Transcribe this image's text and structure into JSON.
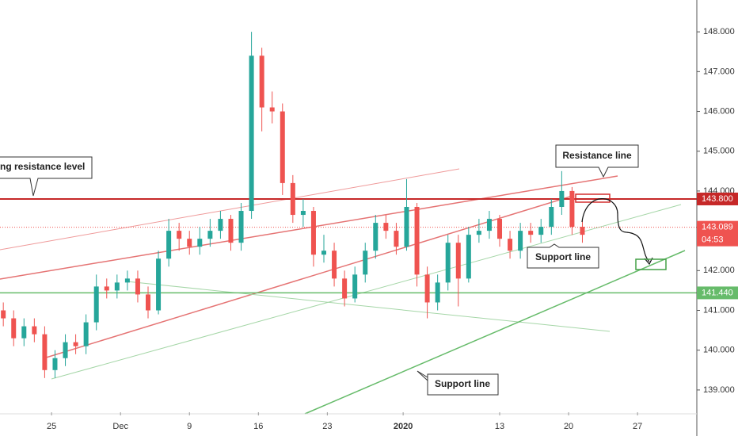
{
  "chart_data": {
    "type": "candlestick",
    "x": [
      -3.5,
      -2.75,
      -2,
      -1.25,
      -0.5,
      0.25,
      1,
      1.75,
      2.5,
      3.25,
      4,
      4.75,
      5.5,
      6.25,
      7,
      7.75,
      8.5,
      9.25,
      10,
      10.75,
      11.5,
      12.25,
      13,
      13.75,
      14.5,
      15.25,
      16,
      16.75,
      17.5,
      18.25,
      19,
      19.75,
      20.5,
      21.25,
      22,
      22.75,
      23.5,
      24.25,
      25,
      25.75,
      26.5,
      27.25,
      28,
      28.75,
      29.5,
      30.25,
      31,
      31.75,
      32.5,
      33.25,
      34,
      34.75,
      35.5,
      36.25,
      37,
      37.75,
      38.5
    ],
    "open": [
      141.0,
      140.8,
      140.3,
      140.6,
      140.4,
      139.5,
      139.8,
      140.2,
      140.1,
      140.7,
      141.6,
      141.5,
      141.7,
      141.8,
      141.4,
      141.0,
      142.3,
      143.0,
      142.8,
      142.6,
      142.8,
      143.0,
      143.3,
      142.7,
      143.5,
      147.4,
      146.1,
      146.0,
      144.2,
      143.4,
      143.5,
      142.4,
      142.5,
      141.8,
      141.3,
      141.9,
      142.5,
      143.2,
      143.0,
      142.6,
      143.6,
      141.9,
      141.2,
      141.7,
      142.7,
      141.8,
      142.9,
      143.0,
      143.3,
      142.8,
      142.5,
      143.0,
      142.9,
      143.1,
      143.6,
      144.0,
      143.1
    ],
    "high": [
      141.2,
      141.0,
      140.8,
      140.8,
      140.6,
      140.0,
      140.4,
      140.4,
      140.9,
      141.9,
      141.8,
      141.9,
      142.0,
      142.0,
      141.6,
      142.5,
      143.3,
      143.2,
      143.0,
      143.1,
      143.3,
      143.5,
      143.4,
      143.7,
      148.0,
      147.6,
      146.5,
      146.2,
      144.4,
      143.8,
      143.6,
      142.9,
      142.7,
      142.0,
      142.1,
      142.7,
      143.4,
      143.4,
      143.2,
      144.3,
      143.7,
      142.1,
      141.9,
      142.9,
      142.9,
      143.1,
      143.3,
      143.5,
      143.4,
      143.0,
      143.2,
      143.2,
      143.3,
      143.8,
      144.5,
      144.1,
      143.3
    ],
    "low": [
      140.6,
      140.1,
      140.1,
      140.2,
      139.3,
      139.3,
      139.6,
      139.9,
      139.9,
      140.5,
      141.3,
      141.3,
      141.5,
      141.2,
      140.8,
      140.9,
      142.1,
      142.5,
      142.4,
      142.4,
      142.6,
      142.8,
      142.5,
      142.5,
      143.3,
      145.5,
      145.7,
      143.9,
      143.2,
      143.1,
      142.1,
      142.2,
      141.6,
      141.1,
      141.2,
      141.7,
      142.3,
      142.8,
      142.4,
      142.5,
      141.6,
      140.8,
      141.0,
      141.5,
      141.1,
      141.7,
      142.7,
      142.8,
      142.6,
      142.3,
      142.3,
      142.7,
      142.7,
      142.9,
      143.4,
      142.9,
      142.7
    ],
    "close": [
      140.8,
      140.3,
      140.6,
      140.4,
      139.5,
      139.8,
      140.2,
      140.1,
      140.7,
      141.6,
      141.5,
      141.7,
      141.8,
      141.4,
      141.0,
      142.3,
      143.0,
      142.8,
      142.6,
      142.8,
      143.0,
      143.3,
      142.7,
      143.5,
      147.4,
      146.1,
      146.0,
      144.2,
      143.4,
      143.5,
      142.4,
      142.5,
      141.8,
      141.3,
      141.9,
      142.5,
      143.2,
      143.0,
      142.6,
      143.6,
      141.9,
      141.2,
      141.7,
      142.7,
      141.8,
      142.9,
      143.0,
      143.3,
      142.8,
      142.5,
      143.0,
      142.9,
      143.1,
      143.6,
      144.0,
      143.1,
      142.9
    ],
    "up_color": "#26a69a",
    "down_color": "#ef5350",
    "xlim": [
      -3.74,
      46.8
    ],
    "xticks": [
      {
        "value": 0,
        "label": "25"
      },
      {
        "value": 5,
        "label": "Dec"
      },
      {
        "value": 10,
        "label": "9"
      },
      {
        "value": 15,
        "label": "16"
      },
      {
        "value": 20,
        "label": "23"
      },
      {
        "value": 25.5,
        "label": "2020"
      },
      {
        "value": 32.5,
        "label": "13"
      },
      {
        "value": 37.5,
        "label": "20"
      },
      {
        "value": 42.5,
        "label": "27"
      }
    ],
    "ylim": [
      138.44,
      148.8
    ],
    "yticks": [
      {
        "value": 139,
        "label": "139.000"
      },
      {
        "value": 140,
        "label": "140.000"
      },
      {
        "value": 141,
        "label": "141.000"
      },
      {
        "value": 142,
        "label": "142.000"
      },
      {
        "value": 143,
        "label": "143.000"
      },
      {
        "value": 144,
        "label": "144.000"
      },
      {
        "value": 145,
        "label": "145.000"
      },
      {
        "value": 146,
        "label": "146.000"
      },
      {
        "value": 147,
        "label": "147.000"
      },
      {
        "value": 148,
        "label": "148.000"
      }
    ],
    "levels": [
      {
        "value": 143.8,
        "label": "143.800",
        "color": "#c62828"
      },
      {
        "value": 141.44,
        "label": "141.440",
        "color": "#66bb6a"
      }
    ],
    "last_price": 143.089,
    "last_price_color": "#ef5350",
    "countdown": "04:53",
    "annotations": [
      "ng resistance level",
      "Resistance line",
      "Support line",
      "Support line"
    ]
  }
}
